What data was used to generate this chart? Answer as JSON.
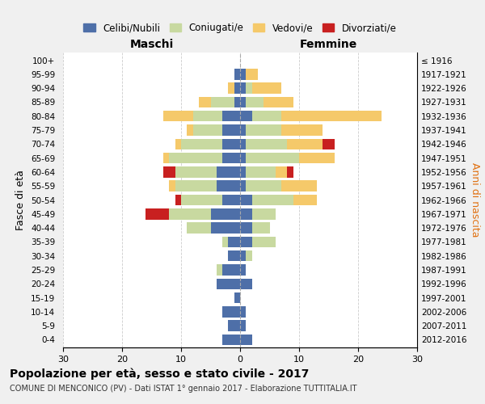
{
  "age_groups": [
    "0-4",
    "5-9",
    "10-14",
    "15-19",
    "20-24",
    "25-29",
    "30-34",
    "35-39",
    "40-44",
    "45-49",
    "50-54",
    "55-59",
    "60-64",
    "65-69",
    "70-74",
    "75-79",
    "80-84",
    "85-89",
    "90-94",
    "95-99",
    "100+"
  ],
  "birth_years": [
    "2012-2016",
    "2007-2011",
    "2002-2006",
    "1997-2001",
    "1992-1996",
    "1987-1991",
    "1982-1986",
    "1977-1981",
    "1972-1976",
    "1967-1971",
    "1962-1966",
    "1957-1961",
    "1952-1956",
    "1947-1951",
    "1942-1946",
    "1937-1941",
    "1932-1936",
    "1927-1931",
    "1922-1926",
    "1917-1921",
    "≤ 1916"
  ],
  "males": {
    "celibi": [
      3,
      2,
      3,
      1,
      4,
      3,
      2,
      2,
      5,
      5,
      3,
      4,
      4,
      3,
      3,
      3,
      3,
      1,
      1,
      1,
      0
    ],
    "coniugati": [
      0,
      0,
      0,
      0,
      0,
      1,
      0,
      1,
      4,
      7,
      7,
      7,
      7,
      9,
      7,
      5,
      5,
      4,
      0,
      0,
      0
    ],
    "vedovi": [
      0,
      0,
      0,
      0,
      0,
      0,
      0,
      0,
      0,
      0,
      0,
      1,
      0,
      1,
      1,
      1,
      5,
      2,
      1,
      0,
      0
    ],
    "divorziati": [
      0,
      0,
      0,
      0,
      0,
      0,
      0,
      0,
      0,
      4,
      1,
      0,
      2,
      0,
      0,
      0,
      0,
      0,
      0,
      0,
      0
    ]
  },
  "females": {
    "nubili": [
      2,
      1,
      1,
      0,
      2,
      1,
      1,
      2,
      2,
      2,
      2,
      1,
      1,
      1,
      1,
      1,
      2,
      1,
      1,
      1,
      0
    ],
    "coniugate": [
      0,
      0,
      0,
      0,
      0,
      0,
      1,
      4,
      3,
      4,
      7,
      6,
      5,
      9,
      7,
      6,
      5,
      3,
      1,
      0,
      0
    ],
    "vedove": [
      0,
      0,
      0,
      0,
      0,
      0,
      0,
      0,
      0,
      0,
      4,
      6,
      2,
      6,
      6,
      7,
      17,
      5,
      5,
      2,
      0
    ],
    "divorziate": [
      0,
      0,
      0,
      0,
      0,
      0,
      0,
      0,
      0,
      0,
      0,
      0,
      1,
      0,
      2,
      0,
      0,
      0,
      0,
      0,
      0
    ]
  },
  "colors": {
    "celibi": "#4e6fa8",
    "coniugati": "#c8d9a0",
    "vedovi": "#f5c96a",
    "divorziati": "#c82020"
  },
  "xlim": 30,
  "title": "Popolazione per età, sesso e stato civile - 2017",
  "subtitle": "COMUNE DI MENCONICO (PV) - Dati ISTAT 1° gennaio 2017 - Elaborazione TUTTITALIA.IT",
  "ylabel": "Fasce di età",
  "ylabel_right": "Anni di nascita",
  "legend_labels": [
    "Celibi/Nubili",
    "Coniugati/e",
    "Vedovi/e",
    "Divorziati/e"
  ],
  "bg_color": "#f0f0f0",
  "plot_bg_color": "#ffffff"
}
